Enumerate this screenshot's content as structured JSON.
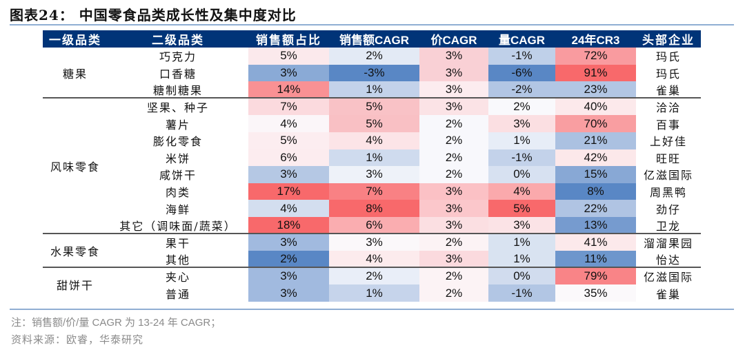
{
  "title": "图表24： 中国零食品类成长性及集中度对比",
  "headers": [
    "一级品类",
    "二级品类",
    "销售额占比",
    "销售额CAGR",
    "价CAGR",
    "量CAGR",
    "24年CR3",
    "头部企业"
  ],
  "groups": [
    {
      "name": "糖果",
      "rows": [
        {
          "sub": "巧克力",
          "share": "5%",
          "sales_cagr": "2%",
          "price_cagr": "3%",
          "vol_cagr": "-1%",
          "cr3": "72%",
          "leader": "玛氏",
          "colors": [
            "#fbe9ec",
            "#e3eaf5",
            "#f9d0d5",
            "#bfd0e9",
            "#f99b9f"
          ]
        },
        {
          "sub": "口香糖",
          "share": "3%",
          "sales_cagr": "-3%",
          "price_cagr": "3%",
          "vol_cagr": "-6%",
          "cr3": "91%",
          "leader": "玛氏",
          "colors": [
            "#8aaad6",
            "#5987c5",
            "#f9d0d5",
            "#5987c5",
            "#f8696b"
          ]
        },
        {
          "sub": "糖制糖果",
          "share": "14%",
          "sales_cagr": "1%",
          "price_cagr": "3%",
          "vol_cagr": "-2%",
          "cr3": "23%",
          "leader": "雀巢",
          "colors": [
            "#f99194",
            "#c3d2ea",
            "#fcecef",
            "#b2c6e4",
            "#b2c6e4"
          ]
        }
      ]
    },
    {
      "name": "风味零食",
      "rows": [
        {
          "sub": "坚果、种子",
          "share": "7%",
          "sales_cagr": "5%",
          "price_cagr": "3%",
          "vol_cagr": "2%",
          "cr3": "40%",
          "leader": "洽洽",
          "colors": [
            "#fbdade",
            "#f9c2c6",
            "#fbe3e6",
            "#f9f9fc",
            "#fce9eb"
          ]
        },
        {
          "sub": "薯片",
          "share": "4%",
          "sales_cagr": "5%",
          "price_cagr": "2%",
          "vol_cagr": "3%",
          "cr3": "70%",
          "leader": "百事",
          "colors": [
            "#fbf6f9",
            "#f9c0c4",
            "#f8f8fc",
            "#fbdfe2",
            "#f99ea1"
          ]
        },
        {
          "sub": "膨化零食",
          "share": "5%",
          "sales_cagr": "4%",
          "price_cagr": "2%",
          "vol_cagr": "1%",
          "cr3": "21%",
          "leader": "上好佳",
          "colors": [
            "#fcedf0",
            "#fce4e7",
            "#f8f8fc",
            "#e7edf7",
            "#abc1e1"
          ]
        },
        {
          "sub": "米饼",
          "share": "6%",
          "sales_cagr": "1%",
          "price_cagr": "2%",
          "vol_cagr": "-1%",
          "cr3": "42%",
          "leader": "旺旺",
          "colors": [
            "#fcecef",
            "#cfdbee",
            "#f8f8fc",
            "#c3d2ea",
            "#fce8ea"
          ]
        },
        {
          "sub": "咸饼干",
          "share": "3%",
          "sales_cagr": "3%",
          "price_cagr": "2%",
          "vol_cagr": "0%",
          "cr3": "15%",
          "leader": "亿滋国际",
          "colors": [
            "#b5c8e4",
            "#eef2f9",
            "#f8f8fc",
            "#d7e1f1",
            "#88a8d5"
          ]
        },
        {
          "sub": "肉类",
          "share": "17%",
          "sales_cagr": "7%",
          "price_cagr": "3%",
          "vol_cagr": "4%",
          "cr3": "8%",
          "leader": "周黑鸭",
          "colors": [
            "#f8696b",
            "#f98184",
            "#fbc1c5",
            "#faa9ac",
            "#5987c5"
          ]
        },
        {
          "sub": "海鲜",
          "share": "4%",
          "sales_cagr": "8%",
          "price_cagr": "3%",
          "vol_cagr": "5%",
          "cr3": "22%",
          "leader": "劲仔",
          "colors": [
            "#d3deef",
            "#f8696b",
            "#fbc7cb",
            "#f8696b",
            "#b0c4e3"
          ]
        },
        {
          "sub": "其它（调味面/蔬菜）",
          "share": "18%",
          "sales_cagr": "6%",
          "price_cagr": "3%",
          "vol_cagr": "3%",
          "cr3": "13%",
          "leader": "卫龙",
          "colors": [
            "#f8696b",
            "#faadb0",
            "#fbdfe2",
            "#fbe3e6",
            "#769bcf"
          ]
        }
      ]
    },
    {
      "name": "水果零食",
      "rows": [
        {
          "sub": "果干",
          "share": "3%",
          "sales_cagr": "3%",
          "price_cagr": "2%",
          "vol_cagr": "1%",
          "cr3": "41%",
          "leader": "溜溜果园",
          "colors": [
            "#a1badf",
            "#fbf8fa",
            "#fcf3f5",
            "#d9e3f1",
            "#fce9eb"
          ]
        },
        {
          "sub": "其他",
          "share": "2%",
          "sales_cagr": "4%",
          "price_cagr": "3%",
          "vol_cagr": "1%",
          "cr3": "11%",
          "leader": "怡达",
          "colors": [
            "#5987c5",
            "#fcebed",
            "#fbdade",
            "#d9e3f1",
            "#6d96cc"
          ]
        }
      ]
    },
    {
      "name": "甜饼干",
      "rows": [
        {
          "sub": "夹心",
          "share": "3%",
          "sales_cagr": "2%",
          "price_cagr": "2%",
          "vol_cagr": "0%",
          "cr3": "79%",
          "leader": "亿滋国际",
          "colors": [
            "#a1badf",
            "#e9eef8",
            "#fcf3f5",
            "#d1dcee",
            "#f98487"
          ]
        },
        {
          "sub": "普通",
          "share": "3%",
          "sales_cagr": "1%",
          "price_cagr": "2%",
          "vol_cagr": "-1%",
          "cr3": "35%",
          "leader": "雀巢",
          "colors": [
            "#a1badf",
            "#c6d4eb",
            "#fcf3f5",
            "#b2c6e4",
            "#fbf9fb"
          ]
        }
      ]
    }
  ],
  "notes": {
    "note": "注：销售额/价/量 CAGR 为 13-24 年 CAGR；",
    "source": "资料来源：欧睿，华泰研究"
  },
  "chart_data": {
    "type": "table",
    "title": "图表24： 中国零食品类成长性及集中度对比",
    "columns": [
      "一级品类",
      "二级品类",
      "销售额占比",
      "销售额CAGR",
      "价CAGR",
      "量CAGR",
      "24年CR3",
      "头部企业"
    ],
    "rows": [
      [
        "糖果",
        "巧克力",
        "5%",
        "2%",
        "3%",
        "-1%",
        "72%",
        "玛氏"
      ],
      [
        "糖果",
        "口香糖",
        "3%",
        "-3%",
        "3%",
        "-6%",
        "91%",
        "玛氏"
      ],
      [
        "糖果",
        "糖制糖果",
        "14%",
        "1%",
        "3%",
        "-2%",
        "23%",
        "雀巢"
      ],
      [
        "风味零食",
        "坚果、种子",
        "7%",
        "5%",
        "3%",
        "2%",
        "40%",
        "洽洽"
      ],
      [
        "风味零食",
        "薯片",
        "4%",
        "5%",
        "2%",
        "3%",
        "70%",
        "百事"
      ],
      [
        "风味零食",
        "膨化零食",
        "5%",
        "4%",
        "2%",
        "1%",
        "21%",
        "上好佳"
      ],
      [
        "风味零食",
        "米饼",
        "6%",
        "1%",
        "2%",
        "-1%",
        "42%",
        "旺旺"
      ],
      [
        "风味零食",
        "咸饼干",
        "3%",
        "3%",
        "2%",
        "0%",
        "15%",
        "亿滋国际"
      ],
      [
        "风味零食",
        "肉类",
        "17%",
        "7%",
        "3%",
        "4%",
        "8%",
        "周黑鸭"
      ],
      [
        "风味零食",
        "海鲜",
        "4%",
        "8%",
        "3%",
        "5%",
        "22%",
        "劲仔"
      ],
      [
        "风味零食",
        "其它（调味面/蔬菜）",
        "18%",
        "6%",
        "3%",
        "3%",
        "13%",
        "卫龙"
      ],
      [
        "水果零食",
        "果干",
        "3%",
        "3%",
        "2%",
        "1%",
        "41%",
        "溜溜果园"
      ],
      [
        "水果零食",
        "其他",
        "2%",
        "4%",
        "3%",
        "1%",
        "11%",
        "怡达"
      ],
      [
        "甜饼干",
        "夹心",
        "3%",
        "2%",
        "2%",
        "0%",
        "79%",
        "亿滋国际"
      ],
      [
        "甜饼干",
        "普通",
        "3%",
        "1%",
        "2%",
        "-1%",
        "35%",
        "雀巢"
      ]
    ]
  }
}
